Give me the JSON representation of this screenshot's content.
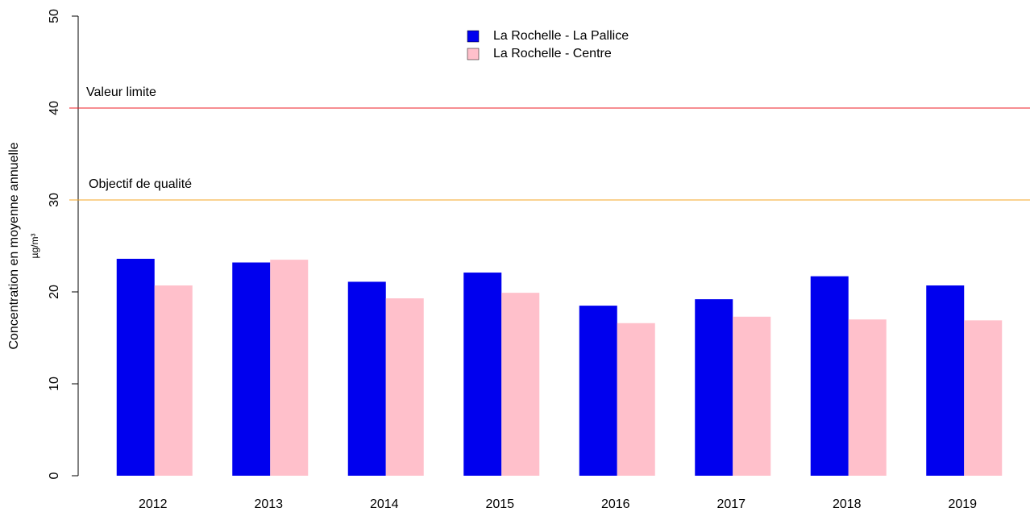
{
  "chart_data": {
    "type": "bar",
    "y_label": "Concentration en moyenne annuelle",
    "unit": "µg/m³",
    "categories": [
      "2012",
      "2013",
      "2014",
      "2015",
      "2016",
      "2017",
      "2018",
      "2019"
    ],
    "series": [
      {
        "name": "La Rochelle - La Pallice",
        "color": "#0000ee",
        "values": [
          23.6,
          23.2,
          21.1,
          22.1,
          18.5,
          19.2,
          21.7,
          20.7
        ]
      },
      {
        "name": "La Rochelle - Centre",
        "color": "#ffc0cb",
        "values": [
          20.7,
          23.5,
          19.3,
          19.9,
          16.6,
          17.3,
          17.0,
          16.9
        ]
      }
    ],
    "reference_lines": [
      {
        "value": 40,
        "label": "Valeur limite",
        "color": "#ee1c24"
      },
      {
        "value": 30,
        "label": "Objectif de qualité",
        "color": "#f5a623"
      }
    ],
    "ylim": [
      0,
      50
    ],
    "yticks": [
      0,
      10,
      20,
      30,
      40,
      50
    ]
  }
}
